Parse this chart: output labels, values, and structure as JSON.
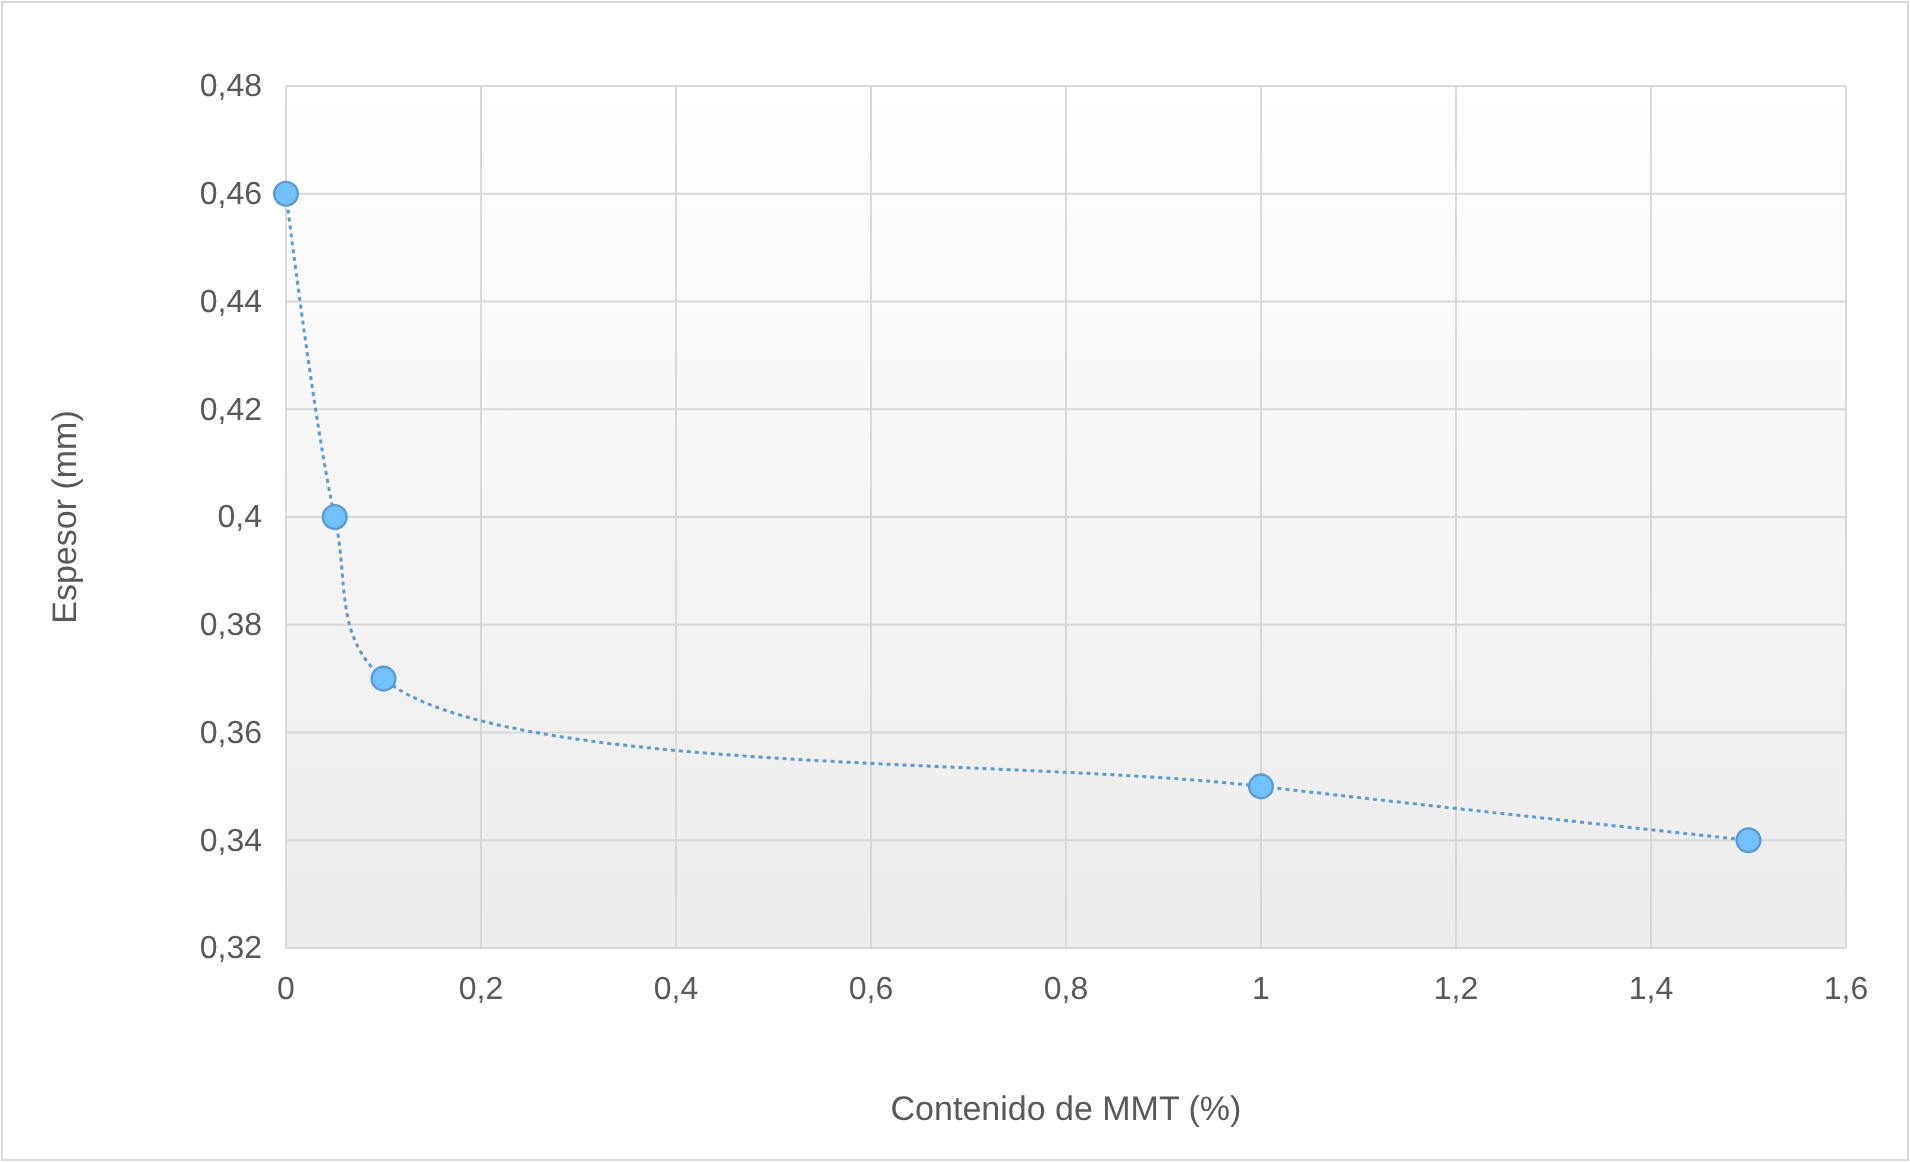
{
  "chart_data": {
    "type": "line",
    "xlabel": "Contenido de MMT (%)",
    "ylabel": "Espesor (mm)",
    "x": [
      0,
      0.05,
      0.1,
      1,
      1.5
    ],
    "series": [
      {
        "color": "#5b9bd5",
        "values": [
          0.46,
          0.4,
          0.37,
          0.35,
          0.34
        ]
      }
    ],
    "xlim": [
      0,
      1.6
    ],
    "ylim": [
      0.32,
      0.48
    ],
    "xticks": [
      0,
      {
        "value": 0.2,
        "label": "0,2"
      },
      {
        "value": 0.4,
        "label": "0,4"
      },
      {
        "value": 0.6,
        "label": "0,6"
      },
      {
        "value": 0.8,
        "label": "0,8"
      },
      1,
      {
        "value": 1.2,
        "label": "1,2"
      },
      {
        "value": 1.4,
        "label": "1,4"
      },
      {
        "value": 1.6,
        "label": "1,6"
      }
    ],
    "yticks": [
      {
        "value": 0.32,
        "label": "0,32"
      },
      {
        "value": 0.34,
        "label": "0,34"
      },
      {
        "value": 0.36,
        "label": "0,36"
      },
      {
        "value": 0.38,
        "label": "0,38"
      },
      {
        "value": 0.4,
        "label": "0,4"
      },
      {
        "value": 0.42,
        "label": "0,42"
      },
      {
        "value": 0.44,
        "label": "0,44"
      },
      {
        "value": 0.46,
        "label": "0,46"
      },
      {
        "value": 0.48,
        "label": "0,48"
      }
    ],
    "grid": true,
    "marker": "circle",
    "line_style": "dotted"
  }
}
